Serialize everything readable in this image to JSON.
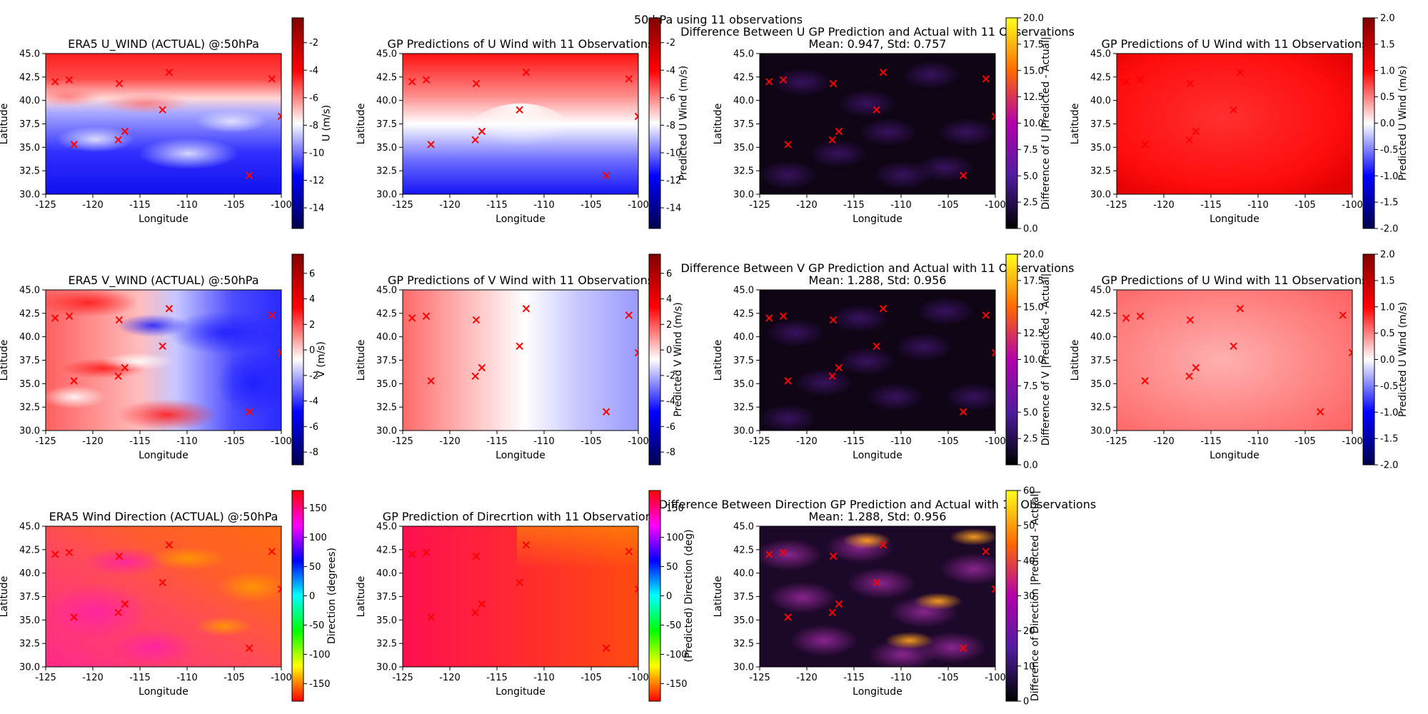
{
  "suptitle": "50 hPa using 11 observations",
  "observations": [
    [
      -124.0,
      42.0
    ],
    [
      -122.5,
      42.2
    ],
    [
      -122.0,
      35.3
    ],
    [
      -117.2,
      41.8
    ],
    [
      -117.3,
      35.8
    ],
    [
      -116.6,
      36.7
    ],
    [
      -112.6,
      39.0
    ],
    [
      -111.9,
      43.0
    ],
    [
      -103.4,
      32.0
    ],
    [
      -101.0,
      42.3
    ],
    [
      -100.0,
      38.3
    ]
  ],
  "colors": {
    "observation_marker": "#ff0000"
  },
  "chart_data": [
    {
      "type": "heatmap",
      "colormap": "seismic",
      "title": "ERA5 U_WIND (ACTUAL) @:50hPa",
      "xlabel": "Longitude",
      "ylabel": "Latitude",
      "xlim": [
        -125,
        -100
      ],
      "ylim": [
        30,
        45
      ],
      "xticks": [
        "-125",
        "-120",
        "-115",
        "-110",
        "-105",
        "-100"
      ],
      "yticks": [
        "30.0",
        "32.5",
        "35.0",
        "37.5",
        "40.0",
        "42.5",
        "45.0"
      ],
      "colorbar": {
        "label": "U (m/s)",
        "range": [
          -15.5,
          -0.2
        ],
        "ticks": [
          "-14",
          "-12",
          "-10",
          "-8",
          "-6",
          "-4",
          "-2"
        ],
        "tick_values": [
          -14,
          -12,
          -10,
          -8,
          -6,
          -4,
          -2
        ]
      }
    },
    {
      "type": "heatmap",
      "colormap": "seismic",
      "title": "GP Predictions of U Wind with 11 Observations",
      "xlabel": "Longitude",
      "ylabel": "Latitude",
      "xlim": [
        -125,
        -100
      ],
      "ylim": [
        30,
        45
      ],
      "xticks": [
        "-125",
        "-120",
        "-115",
        "-110",
        "-105",
        "-100"
      ],
      "yticks": [
        "30.0",
        "32.5",
        "35.0",
        "37.5",
        "40.0",
        "42.5",
        "45.0"
      ],
      "colorbar": {
        "label": "Predicted U Wind (m/s)",
        "range": [
          -15.5,
          -0.2
        ],
        "ticks": [
          "-14",
          "-12",
          "-10",
          "-8",
          "-6",
          "-4",
          "-2"
        ],
        "tick_values": [
          -14,
          -12,
          -10,
          -8,
          -6,
          -4,
          -2
        ]
      }
    },
    {
      "type": "heatmap",
      "colormap": "gnuplot",
      "title": "Difference Between U GP Prediction and Actual with 11 Observations",
      "subtitle": "Mean: 0.947, Std: 0.757",
      "xlabel": "Longitude",
      "ylabel": "Latitude",
      "xlim": [
        -125,
        -100
      ],
      "ylim": [
        30,
        45
      ],
      "xticks": [
        "-125",
        "-120",
        "-115",
        "-110",
        "-105",
        "-100"
      ],
      "yticks": [
        "30.0",
        "32.5",
        "35.0",
        "37.5",
        "40.0",
        "42.5",
        "45.0"
      ],
      "colorbar": {
        "label": "Difference of U |Predicted - Actual|",
        "range": [
          0,
          20
        ],
        "ticks": [
          "0.0",
          "2.5",
          "5.0",
          "7.5",
          "10.0",
          "12.5",
          "15.0",
          "17.5",
          "20.0"
        ],
        "tick_values": [
          0,
          2.5,
          5,
          7.5,
          10,
          12.5,
          15,
          17.5,
          20
        ]
      }
    },
    {
      "type": "heatmap",
      "colormap": "seismic",
      "title": "GP Predictions of U Wind with 11 Observations",
      "xlabel": "Longitude",
      "ylabel": "Latitude",
      "xlim": [
        -125,
        -100
      ],
      "ylim": [
        30,
        45
      ],
      "xticks": [
        "-125",
        "-120",
        "-115",
        "-110",
        "-105",
        "-100"
      ],
      "yticks": [
        "30.0",
        "32.5",
        "35.0",
        "37.5",
        "40.0",
        "42.5",
        "45.0"
      ],
      "colorbar": {
        "label": "Predicted U Wind (m/s)",
        "range": [
          -2,
          2
        ],
        "ticks": [
          "-2.0",
          "-1.5",
          "-1.0",
          "-0.5",
          "0.0",
          "0.5",
          "1.0",
          "1.5",
          "2.0"
        ],
        "tick_values": [
          -2,
          -1.5,
          -1,
          -0.5,
          0,
          0.5,
          1,
          1.5,
          2
        ]
      }
    },
    {
      "type": "heatmap",
      "colormap": "seismic",
      "title": "ERA5 V_WIND (ACTUAL) @:50hPa",
      "xlabel": "Longitude",
      "ylabel": "Latitude",
      "xlim": [
        -125,
        -100
      ],
      "ylim": [
        30,
        45
      ],
      "xticks": [
        "-125",
        "-120",
        "-115",
        "-110",
        "-105",
        "-100"
      ],
      "yticks": [
        "30.0",
        "32.5",
        "35.0",
        "37.5",
        "40.0",
        "42.5",
        "45.0"
      ],
      "colorbar": {
        "label": "V (m/s)",
        "range": [
          -9,
          7.5
        ],
        "ticks": [
          "-8",
          "-6",
          "-4",
          "-2",
          "0",
          "2",
          "4",
          "6"
        ],
        "tick_values": [
          -8,
          -6,
          -4,
          -2,
          0,
          2,
          4,
          6
        ]
      }
    },
    {
      "type": "heatmap",
      "colormap": "seismic",
      "title": "GP Predictions of V Wind with 11 Observations",
      "xlabel": "Longitude",
      "ylabel": "Latitude",
      "xlim": [
        -125,
        -100
      ],
      "ylim": [
        30,
        45
      ],
      "xticks": [
        "-125",
        "-120",
        "-115",
        "-110",
        "-105",
        "-100"
      ],
      "yticks": [
        "30.0",
        "32.5",
        "35.0",
        "37.5",
        "40.0",
        "42.5",
        "45.0"
      ],
      "colorbar": {
        "label": "Predicted V Wind (m/s)",
        "range": [
          -9,
          7.5
        ],
        "ticks": [
          "-8",
          "-6",
          "-4",
          "-2",
          "0",
          "2",
          "4",
          "6"
        ],
        "tick_values": [
          -8,
          -6,
          -4,
          -2,
          0,
          2,
          4,
          6
        ]
      }
    },
    {
      "type": "heatmap",
      "colormap": "gnuplot",
      "title": "Difference Between V GP Prediction and Actual with 11 Observations",
      "subtitle": "Mean: 1.288, Std: 0.956",
      "xlabel": "Longitude",
      "ylabel": "Latitude",
      "xlim": [
        -125,
        -100
      ],
      "ylim": [
        30,
        45
      ],
      "xticks": [
        "-125",
        "-120",
        "-115",
        "-110",
        "-105",
        "-100"
      ],
      "yticks": [
        "30.0",
        "32.5",
        "35.0",
        "37.5",
        "40.0",
        "42.5",
        "45.0"
      ],
      "colorbar": {
        "label": "Difference of V |Predicted - Actual|",
        "range": [
          0,
          20
        ],
        "ticks": [
          "0.0",
          "2.5",
          "5.0",
          "7.5",
          "10.0",
          "12.5",
          "15.0",
          "17.5",
          "20.0"
        ],
        "tick_values": [
          0,
          2.5,
          5,
          7.5,
          10,
          12.5,
          15,
          17.5,
          20
        ]
      }
    },
    {
      "type": "heatmap",
      "colormap": "seismic",
      "title": "GP Predictions of U Wind with 11 Observations",
      "xlabel": "Longitude",
      "ylabel": "Latitude",
      "xlim": [
        -125,
        -100
      ],
      "ylim": [
        30,
        45
      ],
      "xticks": [
        "-125",
        "-120",
        "-115",
        "-110",
        "-105",
        "-100"
      ],
      "yticks": [
        "30.0",
        "32.5",
        "35.0",
        "37.5",
        "40.0",
        "42.5",
        "45.0"
      ],
      "colorbar": {
        "label": "Predicted U Wind (m/s)",
        "range": [
          -2,
          2
        ],
        "ticks": [
          "-2.0",
          "-1.5",
          "-1.0",
          "-0.5",
          "0.0",
          "0.5",
          "1.0",
          "1.5",
          "2.0"
        ],
        "tick_values": [
          -2,
          -1.5,
          -1,
          -0.5,
          0,
          0.5,
          1,
          1.5,
          2
        ]
      }
    },
    {
      "type": "heatmap",
      "colormap": "hsv",
      "title": "ERA5 Wind Direction (ACTUAL) @:50hPa",
      "xlabel": "Longitude",
      "ylabel": "Latitude",
      "xlim": [
        -125,
        -100
      ],
      "ylim": [
        30,
        45
      ],
      "xticks": [
        "-125",
        "-120",
        "-115",
        "-110",
        "-105",
        "-100"
      ],
      "yticks": [
        "30.0",
        "32.5",
        "35.0",
        "37.5",
        "40.0",
        "42.5",
        "45.0"
      ],
      "colorbar": {
        "label": "Direction (degrees)",
        "range": [
          -180,
          180
        ],
        "ticks": [
          "-150",
          "-100",
          "-50",
          "0",
          "50",
          "100",
          "150"
        ],
        "tick_values": [
          -150,
          -100,
          -50,
          0,
          50,
          100,
          150
        ]
      }
    },
    {
      "type": "heatmap",
      "colormap": "hsv",
      "title": "GP Prediction of Direcrtion with 11 Observations",
      "xlabel": "Longitude",
      "ylabel": "Latitude",
      "xlim": [
        -125,
        -100
      ],
      "ylim": [
        30,
        45
      ],
      "xticks": [
        "-125",
        "-120",
        "-115",
        "-110",
        "-105",
        "-100"
      ],
      "yticks": [
        "30.0",
        "32.5",
        "35.0",
        "37.5",
        "40.0",
        "42.5",
        "45.0"
      ],
      "colorbar": {
        "label": "(Predicted) Direction (deg)",
        "range": [
          -180,
          180
        ],
        "ticks": [
          "-150",
          "-100",
          "-50",
          "0",
          "50",
          "100",
          "150"
        ],
        "tick_values": [
          -150,
          -100,
          -50,
          0,
          50,
          100,
          150
        ]
      }
    },
    {
      "type": "heatmap",
      "colormap": "gnuplot",
      "title": "Difference Between Direction GP Prediction and Actual with 11 Observations",
      "subtitle": "Mean: 1.288, Std: 0.956",
      "xlabel": "Longitude",
      "ylabel": "Latitude",
      "xlim": [
        -125,
        -100
      ],
      "ylim": [
        30,
        45
      ],
      "xticks": [
        "-125",
        "-120",
        "-115",
        "-110",
        "-105",
        "-100"
      ],
      "yticks": [
        "30.0",
        "32.5",
        "35.0",
        "37.5",
        "40.0",
        "42.5",
        "45.0"
      ],
      "colorbar": {
        "label": "Difference of Direction |Predicted - Actual|",
        "range": [
          0,
          60
        ],
        "ticks": [
          "0",
          "10",
          "20",
          "30",
          "40",
          "50",
          "60"
        ],
        "tick_values": [
          0,
          10,
          20,
          30,
          40,
          50,
          60
        ]
      }
    }
  ]
}
